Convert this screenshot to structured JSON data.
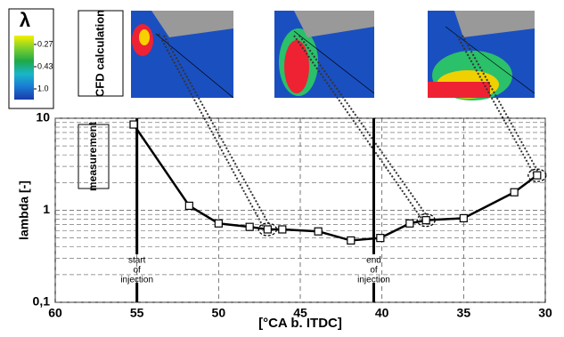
{
  "chart_data": {
    "type": "line",
    "x_label": "[°CA b. ITDC]",
    "y_label": "lambda [-]",
    "xlim": [
      60,
      30
    ],
    "xticks": [
      60,
      55,
      50,
      45,
      40,
      35,
      30
    ],
    "ylim": [
      0.1,
      10
    ],
    "log_y": true,
    "yticks": [
      {
        "value": 0.1,
        "label": "0,1"
      },
      1,
      10
    ],
    "yminorticks": [
      0.2,
      0.3,
      0.4,
      0.5,
      0.6,
      0.7,
      0.8,
      0.9,
      2,
      3,
      4,
      5,
      6,
      7,
      8,
      9
    ],
    "grid": true,
    "series": [
      {
        "name": "measurement",
        "color": "#000000",
        "x": [
          55.2,
          51.8,
          50,
          48.1,
          47,
          46.1,
          43.9,
          41.9,
          40.1,
          38.3,
          37.3,
          35,
          31.9,
          30.5
        ],
        "values": [
          8.55,
          1.12,
          0.72,
          0.66,
          0.62,
          0.62,
          0.59,
          0.47,
          0.5,
          0.72,
          0.78,
          0.82,
          1.57,
          2.4
        ]
      }
    ],
    "annotations": [
      {
        "x": 55,
        "text": [
          "start",
          "of",
          "injection"
        ]
      },
      {
        "x": 40.5,
        "text": [
          "end",
          "of",
          "injection"
        ]
      }
    ],
    "image_label": "CFD calculation",
    "colorbar": {
      "title": "λ",
      "ticks": [
        0.27,
        0.43,
        {
          "value": 1.0,
          "label": "1.0"
        }
      ]
    }
  }
}
